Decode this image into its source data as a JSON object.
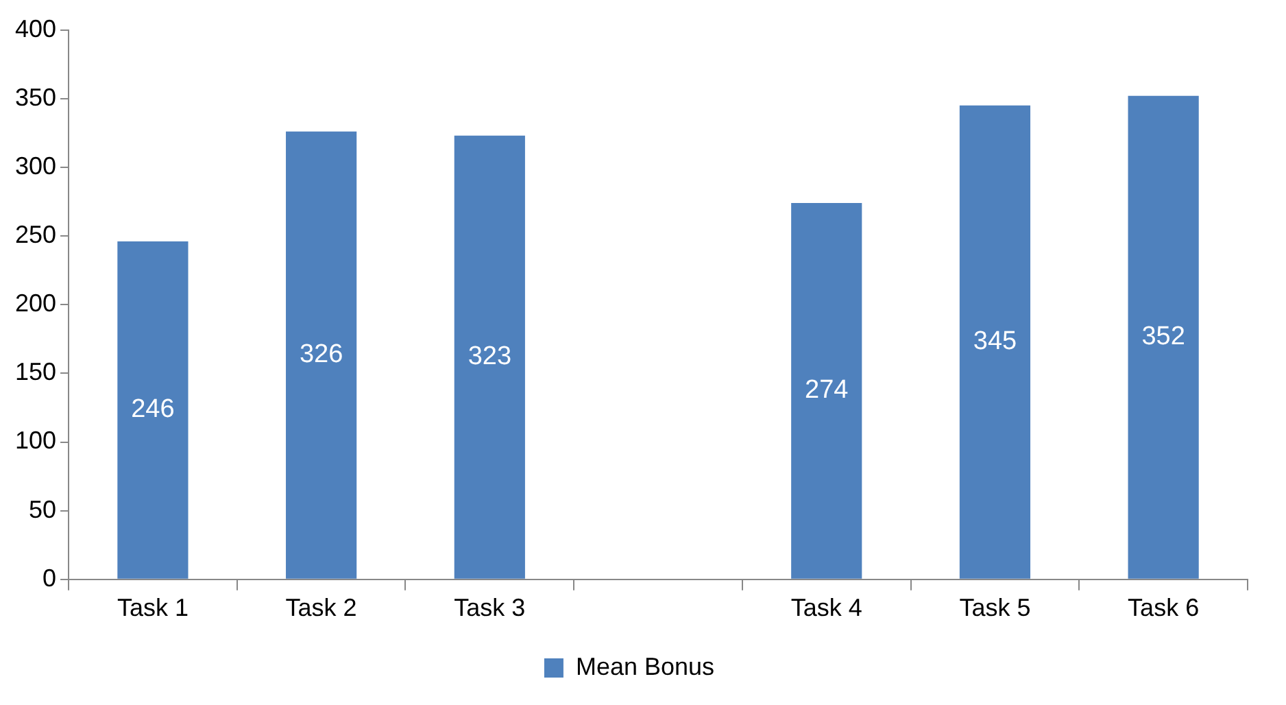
{
  "chart_data": {
    "type": "bar",
    "categories": [
      "Task 1",
      "Task 2",
      "Task 3",
      null,
      "Task 4",
      "Task 5",
      "Task 6"
    ],
    "series": [
      {
        "name": "Mean Bonus",
        "color": "#4f81bd",
        "values": [
          246,
          326,
          323,
          null,
          274,
          345,
          352
        ]
      }
    ],
    "ylim": [
      0,
      400
    ],
    "yticks": [
      0,
      50,
      100,
      150,
      200,
      250,
      300,
      350,
      400
    ],
    "grid": false,
    "legend": "bottom",
    "data_labels": true
  }
}
